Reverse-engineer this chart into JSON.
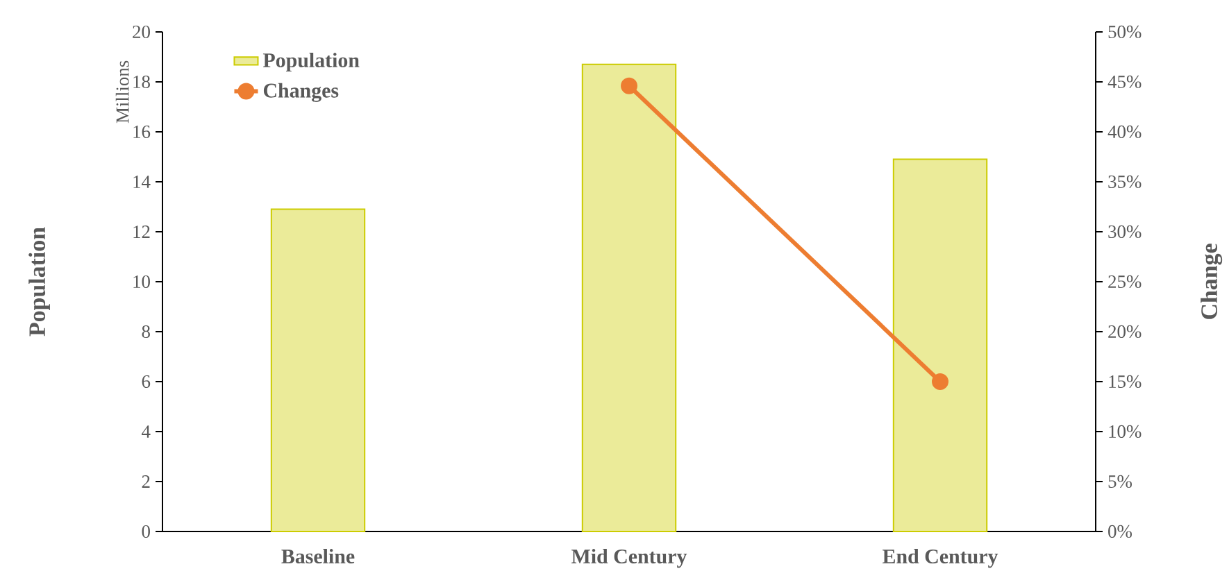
{
  "chart_data": {
    "type": "bar",
    "categories": [
      "Baseline",
      "Mid Century",
      "End Century"
    ],
    "ylabel": "Population",
    "y2label": "Change",
    "annotations": [
      "Millions"
    ],
    "ylim": [
      0,
      20
    ],
    "yticks": [
      0,
      2,
      4,
      6,
      8,
      10,
      12,
      14,
      16,
      18,
      20
    ],
    "y2lim": [
      0,
      50
    ],
    "y2ticks": [
      {
        "value": 0,
        "label": "0%"
      },
      {
        "value": 5,
        "label": "5%"
      },
      {
        "value": 10,
        "label": "10%"
      },
      {
        "value": 15,
        "label": "15%"
      },
      {
        "value": 20,
        "label": "20%"
      },
      {
        "value": 25,
        "label": "25%"
      },
      {
        "value": 30,
        "label": "30%"
      },
      {
        "value": 35,
        "label": "35%"
      },
      {
        "value": 40,
        "label": "40%"
      },
      {
        "value": 45,
        "label": "45%"
      },
      {
        "value": 50,
        "label": "50%"
      }
    ],
    "legend": "top left",
    "marker": "circle",
    "series": [
      {
        "name": "Population",
        "color": "#cccc00",
        "values": [
          12.9,
          18.7,
          14.9
        ]
      },
      {
        "name": "Changes",
        "type": "line",
        "axis": "y2",
        "color": "#ed7d31",
        "values": [
          null,
          44.6,
          15.0
        ]
      }
    ]
  }
}
